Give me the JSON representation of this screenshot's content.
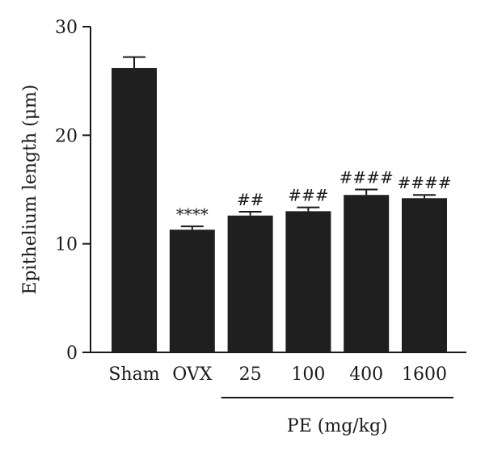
{
  "chart_data": {
    "type": "bar",
    "categories": [
      "Sham",
      "OVX",
      "25",
      "100",
      "400",
      "1600"
    ],
    "values": [
      26.2,
      11.3,
      12.6,
      13.0,
      14.5,
      14.2
    ],
    "errors": [
      1.0,
      0.3,
      0.35,
      0.35,
      0.5,
      0.3
    ],
    "annotations": [
      "",
      "****",
      "##",
      "###",
      "####",
      "####"
    ],
    "title": "",
    "xlabel": "",
    "ylabel": "Epithelium length (μm)",
    "ylim": [
      0,
      30
    ],
    "yticks": [
      0,
      10,
      20,
      30
    ],
    "group_label": "PE (mg/kg)",
    "group_categories": [
      "25",
      "100",
      "400",
      "1600"
    ],
    "bar_color": "#1f1f1f",
    "grid": false,
    "legend": "none"
  }
}
